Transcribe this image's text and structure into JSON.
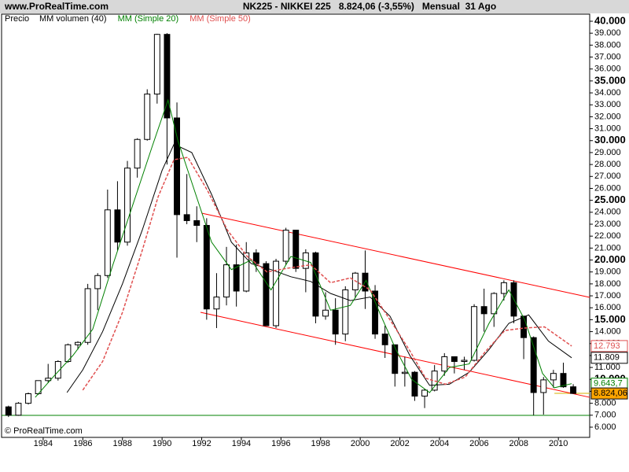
{
  "chart_data": {
    "type": "candlestick",
    "source": "www.ProRealTime.com",
    "title": "NK225 - NIKKEI 225   8.824,06 (-3,55%)   Mensual  31 Ago",
    "copyright": "© ProRealTime.com",
    "xlim": [
      1981.9,
      2011.58
    ],
    "ylim": [
      5143,
      40593
    ],
    "xticks": [
      1984,
      1986,
      1988,
      1990,
      1992,
      1994,
      1996,
      1998,
      2000,
      2002,
      2004,
      2006,
      2008,
      2010
    ],
    "yticks": [
      {
        "value": 6000,
        "label": "6.000"
      },
      {
        "value": 7000,
        "label": "7.000"
      },
      {
        "value": 8000,
        "label": "8.000"
      },
      {
        "value": 9000,
        "label": "9.000"
      },
      {
        "value": 10000,
        "label": "10.000"
      },
      {
        "value": 11000,
        "label": "11.000"
      },
      {
        "value": 12000,
        "label": "12.000"
      },
      {
        "value": 13000,
        "label": "13.000"
      },
      {
        "value": 14000,
        "label": "14.000"
      },
      {
        "value": 15000,
        "label": "15.000"
      },
      {
        "value": 16000,
        "label": "16.000"
      },
      {
        "value": 17000,
        "label": "17.000"
      },
      {
        "value": 18000,
        "label": "18.000"
      },
      {
        "value": 19000,
        "label": "19.000"
      },
      {
        "value": 20000,
        "label": "20.000"
      },
      {
        "value": 21000,
        "label": "21.000"
      },
      {
        "value": 22000,
        "label": "22.000"
      },
      {
        "value": 23000,
        "label": "23.000"
      },
      {
        "value": 24000,
        "label": "24.000"
      },
      {
        "value": 25000,
        "label": "25.000"
      },
      {
        "value": 26000,
        "label": "26.000"
      },
      {
        "value": 27000,
        "label": "27.000"
      },
      {
        "value": 28000,
        "label": "28.000"
      },
      {
        "value": 29000,
        "label": "29.000"
      },
      {
        "value": 30000,
        "label": "30.000"
      },
      {
        "value": 31000,
        "label": "31.000"
      },
      {
        "value": 32000,
        "label": "32.000"
      },
      {
        "value": 33000,
        "label": "33.000"
      },
      {
        "value": 34000,
        "label": "34.000"
      },
      {
        "value": 35000,
        "label": "35.000"
      },
      {
        "value": 36000,
        "label": "36.000"
      },
      {
        "value": 37000,
        "label": "37.000"
      },
      {
        "value": 38000,
        "label": "38.000"
      },
      {
        "value": 39000,
        "label": "39.000"
      },
      {
        "value": 40000,
        "label": "40.000"
      }
    ],
    "candles": {
      "name": "Precio",
      "x": [
        1982.0,
        1982.5,
        1983.0,
        1983.5,
        1984.0,
        1984.5,
        1985.0,
        1985.5,
        1986.0,
        1986.5,
        1987.0,
        1987.5,
        1988.0,
        1988.5,
        1989.0,
        1989.5,
        1990.0,
        1990.5,
        1991.0,
        1991.5,
        1992.0,
        1992.5,
        1993.0,
        1993.5,
        1994.0,
        1994.5,
        1995.0,
        1995.5,
        1996.0,
        1996.5,
        1997.0,
        1997.5,
        1998.0,
        1998.5,
        1999.0,
        1999.5,
        2000.0,
        2000.5,
        2001.0,
        2001.5,
        2002.0,
        2002.5,
        2003.0,
        2003.5,
        2004.0,
        2004.5,
        2005.0,
        2005.5,
        2006.0,
        2006.5,
        2007.0,
        2007.5,
        2008.0,
        2008.5,
        2009.0,
        2009.5,
        2010.0,
        2010.5
      ],
      "open": [
        7700,
        7000,
        8000,
        8800,
        9900,
        10100,
        11500,
        12900,
        13100,
        17600,
        18700,
        24200,
        21500,
        27700,
        30100,
        33900,
        38900,
        31900,
        23800,
        23300,
        22900,
        15900,
        16900,
        19600,
        17400,
        20600,
        19700,
        14500,
        19900,
        22500,
        19300,
        20600,
        15300,
        15800,
        13800,
        17500,
        18900,
        17400,
        13800,
        12900,
        10500,
        10600,
        8600,
        9100,
        10700,
        11900,
        11500,
        11600,
        16100,
        15500,
        17200,
        18100,
        15300,
        13500,
        8900,
        9960,
        10500,
        9380
      ],
      "high": [
        7800,
        8100,
        8900,
        9900,
        11300,
        11600,
        13000,
        13200,
        18000,
        18900,
        25900,
        26600,
        28300,
        30200,
        34300,
        38950,
        39000,
        33200,
        27200,
        24500,
        23500,
        18900,
        21100,
        21300,
        21500,
        20900,
        19900,
        20100,
        22700,
        22500,
        20900,
        20700,
        17300,
        16800,
        17800,
        19000,
        20800,
        17900,
        14500,
        12900,
        11900,
        10700,
        9200,
        11200,
        12200,
        11900,
        11900,
        16300,
        17600,
        17300,
        18300,
        18300,
        15300,
        13600,
        10200,
        10800,
        11400,
        9600
      ],
      "low": [
        6850,
        6950,
        7900,
        8700,
        9700,
        9900,
        11400,
        12500,
        12900,
        15800,
        18500,
        20800,
        21200,
        26900,
        30000,
        33100,
        28000,
        20200,
        23000,
        21500,
        15000,
        14300,
        16200,
        16100,
        17300,
        19000,
        14500,
        14300,
        19600,
        19000,
        17300,
        14700,
        15000,
        12900,
        13200,
        16800,
        15900,
        13400,
        11800,
        9400,
        9400,
        8200,
        7600,
        9000,
        10300,
        10500,
        10800,
        11500,
        14000,
        14400,
        16600,
        14700,
        11700,
        7000,
        7050,
        9300,
        9300,
        8800
      ],
      "close": [
        7000,
        8000,
        8800,
        9900,
        10100,
        11500,
        12900,
        13100,
        17600,
        18700,
        24200,
        21500,
        27700,
        30100,
        33900,
        38900,
        31900,
        23800,
        23300,
        22900,
        15900,
        16900,
        19600,
        17400,
        20600,
        19700,
        14500,
        19900,
        22500,
        19300,
        20600,
        15300,
        15800,
        13800,
        17500,
        18900,
        17400,
        13800,
        12900,
        10500,
        10600,
        8600,
        9100,
        10700,
        11900,
        11500,
        11600,
        16100,
        15500,
        17200,
        18100,
        15300,
        13500,
        8900,
        9960,
        10500,
        9380,
        8824.06
      ]
    },
    "series": [
      {
        "name": "MM volumen (40)",
        "color": "#000000",
        "dashed": false,
        "x": [
          1985.2,
          1986,
          1987,
          1988,
          1989,
          1990,
          1990.6,
          1991.5,
          1992.5,
          1993.5,
          1994.5,
          1995.5,
          1996.5,
          1997.5,
          1998.5,
          1999.5,
          2000.5,
          2001.5,
          2002.5,
          2003.5,
          2004.5,
          2005.5,
          2006.5,
          2007.5,
          2008.5,
          2009.5,
          2010.67
        ],
        "values": [
          8900,
          10800,
          14000,
          18000,
          22500,
          27500,
          29700,
          29000,
          25500,
          21500,
          19700,
          19200,
          18600,
          18200,
          17200,
          16600,
          16900,
          15300,
          12000,
          9500,
          9600,
          10600,
          12500,
          14700,
          15400,
          13200,
          11809
        ]
      },
      {
        "name": "MM (Simple 20)",
        "color": "#008000",
        "dashed": false,
        "x": [
          1983.6,
          1984.5,
          1985.5,
          1986.5,
          1987.5,
          1988.5,
          1989.5,
          1990.3,
          1990.8,
          1991.5,
          1992.5,
          1993.5,
          1994.5,
          1995.5,
          1996.5,
          1997.5,
          1998.5,
          1999.5,
          2000.3,
          2001,
          2001.8,
          2002.6,
          2003.5,
          2004.5,
          2005.5,
          2006.5,
          2007.5,
          2008.3,
          2009.2,
          2009.8,
          2010.67
        ],
        "values": [
          8500,
          10200,
          12000,
          14200,
          19500,
          24500,
          29500,
          33400,
          30000,
          26500,
          21500,
          19200,
          20000,
          17500,
          20300,
          19800,
          15800,
          16200,
          18300,
          15500,
          12500,
          10000,
          8900,
          11000,
          11300,
          14700,
          17500,
          15000,
          10500,
          9300,
          9643.7
        ]
      },
      {
        "name": "MM (Simple 50)",
        "color": "#e05050",
        "dashed": true,
        "x": [
          1986,
          1987,
          1988,
          1989,
          1989.8,
          1990.6,
          1991.3,
          1992.3,
          1993.3,
          1994.3,
          1995.3,
          1996.3,
          1997.5,
          1998.5,
          1999.5,
          2000.5,
          2001.5,
          2002.5,
          2003.3,
          2004.3,
          2005.3,
          2006.3,
          2007.3,
          2008.3,
          2009.3,
          2010.67
        ],
        "values": [
          9100,
          11500,
          15600,
          20800,
          25300,
          28400,
          28600,
          25800,
          22500,
          20300,
          19000,
          19300,
          19600,
          18100,
          18500,
          17500,
          15000,
          12400,
          10100,
          9600,
          10200,
          12300,
          14100,
          14300,
          14400,
          12793
        ]
      }
    ],
    "trendlines": [
      {
        "x": [
          1992,
          2011.58
        ],
        "values": [
          23920,
          16870
        ],
        "color": "#ff0000"
      },
      {
        "x": [
          1991.94,
          2011.58
        ],
        "values": [
          15620,
          8500
        ],
        "color": "#ff0000"
      }
    ],
    "hlines": [
      {
        "value": 6990,
        "color": "#008000",
        "from": 1981.9
      },
      {
        "value": 8830,
        "color": "#d4b000",
        "from": 2009.8
      }
    ],
    "price_labels": [
      {
        "value": 12793,
        "label": "12.793",
        "color": "#e05050",
        "background": "#ffffff"
      },
      {
        "value": 11809,
        "label": "11.809",
        "color": "#000000",
        "background": "#ffffff"
      },
      {
        "value": 9643.7,
        "label": "9.643,7",
        "color": "#008000",
        "background": "#ffffff"
      },
      {
        "value": 8824.06,
        "label": "8.824,06",
        "color": "#000000",
        "background": "#ffa500"
      }
    ]
  }
}
